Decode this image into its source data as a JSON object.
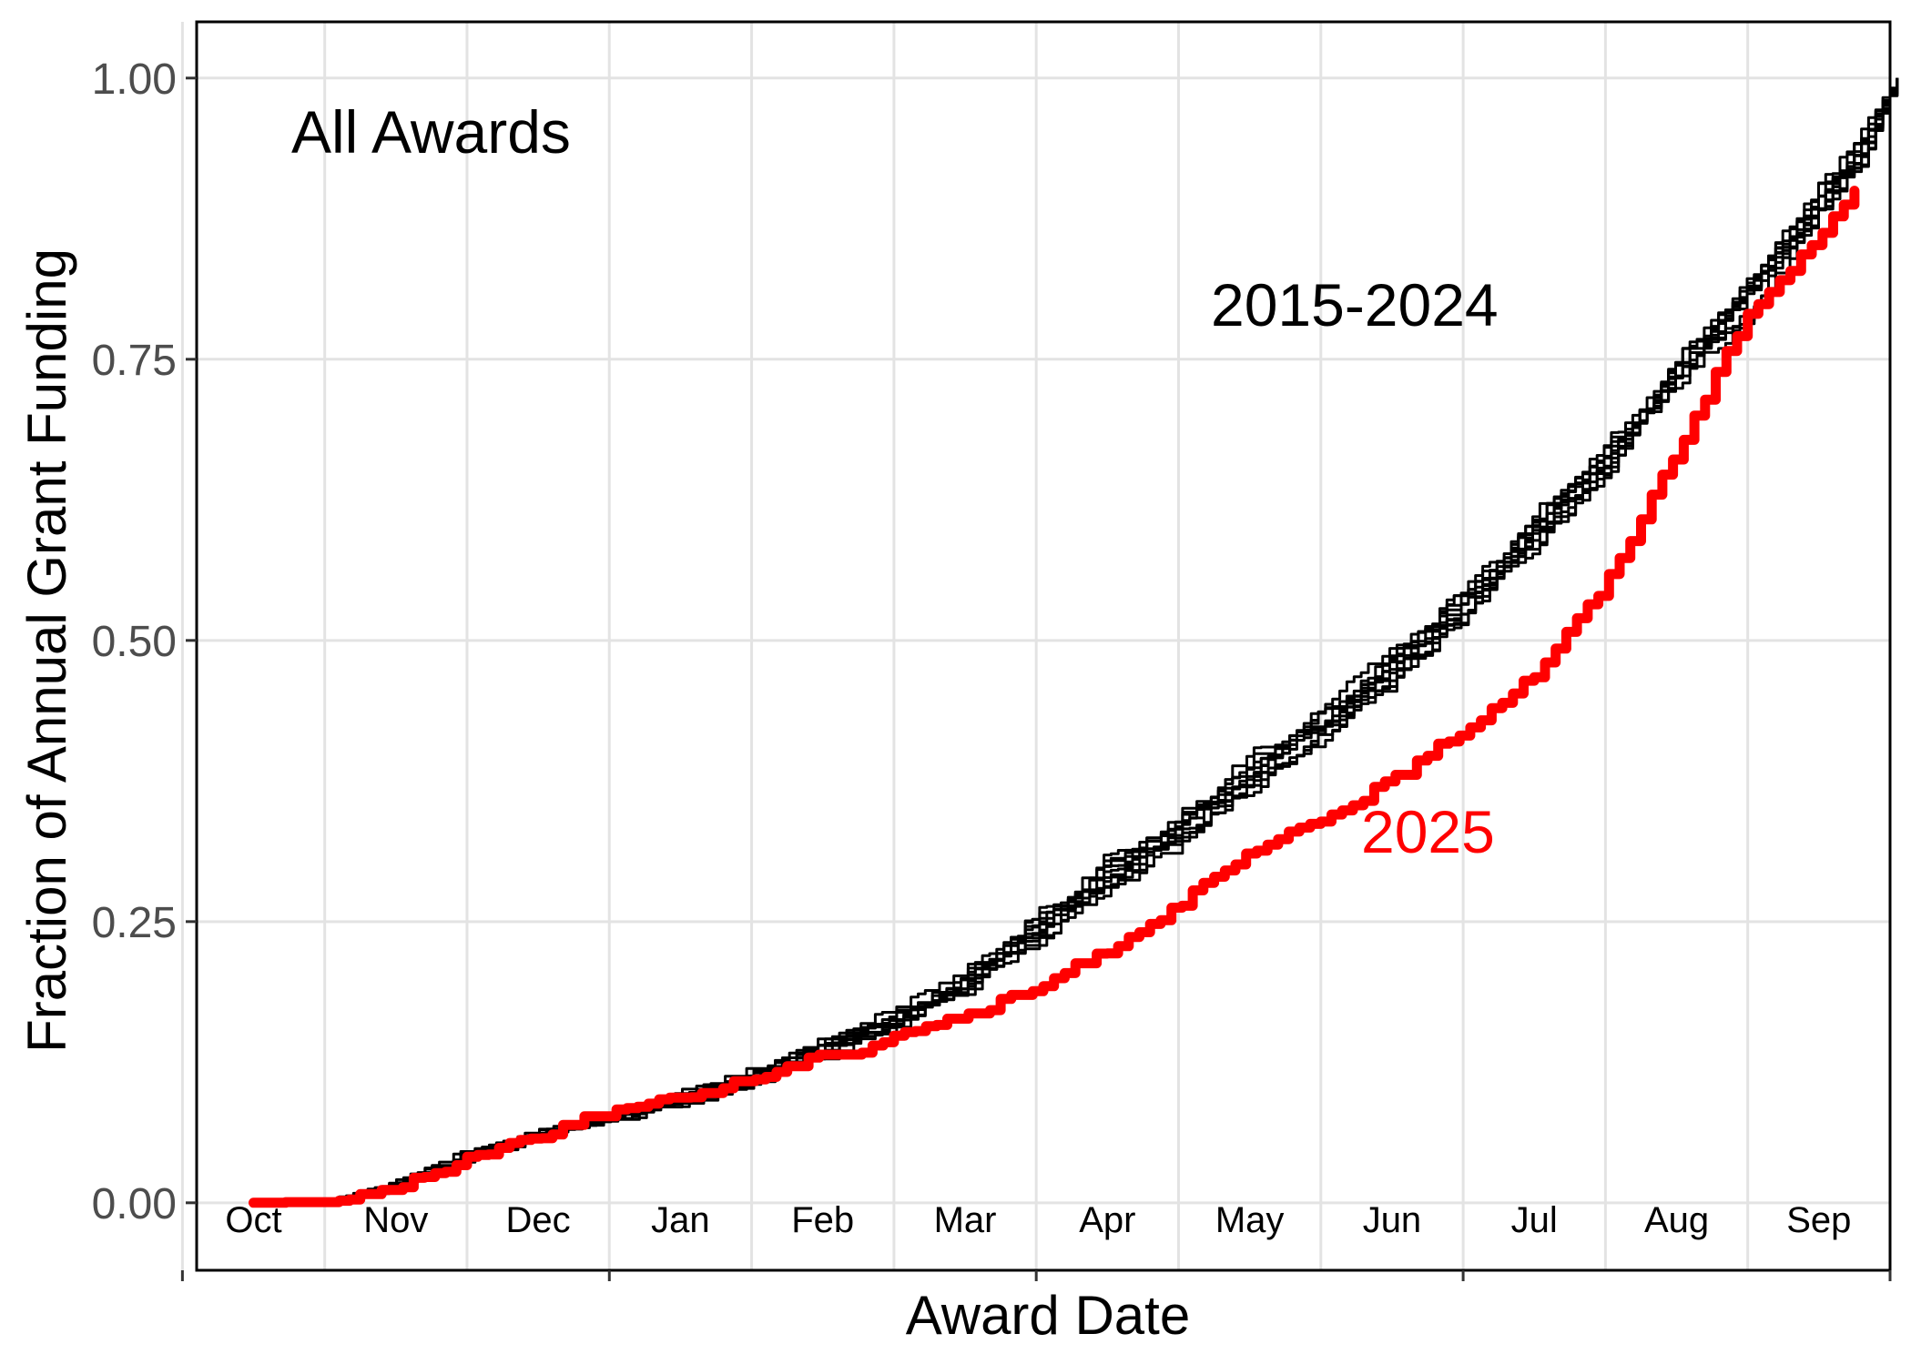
{
  "chart_data": {
    "type": "line",
    "title": "",
    "panel_label": "All Awards",
    "xlabel": "Award Date",
    "ylabel": "Fraction of Annual Grant Funding",
    "x_unit": "month of fiscal year (Oct = 0)",
    "xlim": [
      -0.4,
      11.5
    ],
    "ylim": [
      -0.06,
      1.05
    ],
    "x_tick_labels": [
      "Oct",
      "Nov",
      "Dec",
      "Jan",
      "Feb",
      "Mar",
      "Apr",
      "May",
      "Jun",
      "Jul",
      "Aug",
      "Sep"
    ],
    "y_ticks": [
      0,
      0.25,
      0.5,
      0.75,
      1
    ],
    "y_tick_labels": [
      "0.00",
      "0.25",
      "0.50",
      "0.75",
      "1.00"
    ],
    "grid": true,
    "legend": "none",
    "annotations": [
      {
        "text": "2015-2024",
        "color": "#000000"
      },
      {
        "text": "2025",
        "color": "#ff0000"
      }
    ],
    "series": [
      {
        "name": "2015-2024",
        "color": "#000000",
        "runs": 10,
        "x": [
          0,
          0.5,
          0.7,
          1,
          1.5,
          2,
          2.5,
          3,
          3.5,
          4,
          4.5,
          5,
          5.5,
          6,
          6.5,
          7,
          7.5,
          8,
          8.5,
          9,
          9.5,
          10,
          10.5,
          11,
          11.3,
          11.55
        ],
        "y": [
          0,
          0,
          0.005,
          0.015,
          0.04,
          0.058,
          0.078,
          0.092,
          0.11,
          0.135,
          0.16,
          0.195,
          0.24,
          0.29,
          0.33,
          0.38,
          0.425,
          0.475,
          0.53,
          0.6,
          0.66,
          0.74,
          0.8,
          0.89,
          0.94,
          1.0
        ]
      },
      {
        "name": "2025",
        "color": "#ff0000",
        "x": [
          0,
          0.5,
          0.7,
          1,
          1.5,
          2,
          2.5,
          3,
          3.5,
          4,
          4.2,
          4.5,
          5,
          5.5,
          6,
          6.5,
          7,
          7.5,
          8,
          8.5,
          9,
          9.5,
          10,
          10.5,
          10.8,
          11,
          11.25
        ],
        "y": [
          0,
          0,
          0.005,
          0.012,
          0.04,
          0.06,
          0.08,
          0.092,
          0.11,
          0.13,
          0.13,
          0.15,
          0.165,
          0.19,
          0.225,
          0.265,
          0.31,
          0.34,
          0.375,
          0.42,
          0.47,
          0.55,
          0.67,
          0.79,
          0.83,
          0.86,
          0.9
        ]
      }
    ]
  }
}
